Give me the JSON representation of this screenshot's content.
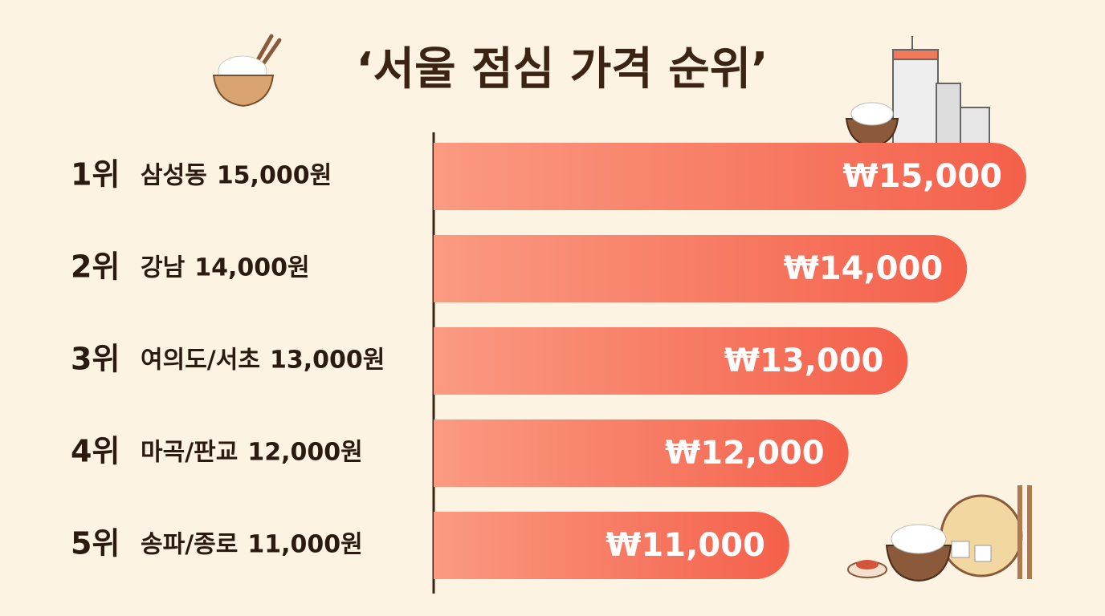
{
  "chart_data": {
    "type": "bar",
    "orientation": "horizontal",
    "title": "‘서울 점심 가격 순위’",
    "ranks": [
      "1위",
      "2위",
      "3위",
      "4위",
      "5위"
    ],
    "categories": [
      "삼성동",
      "강남",
      "여의도/서초",
      "마곡/판교",
      "송파/종로"
    ],
    "price_labels": [
      "15,000원",
      "14,000원",
      "13,000원",
      "12,000원",
      "11,000원"
    ],
    "values": [
      15000,
      14000,
      13000,
      12000,
      11000
    ],
    "value_labels": [
      "₩15,000",
      "₩14,000",
      "₩13,000",
      "₩12,000",
      "₩11,000"
    ],
    "xlim": [
      5000,
      15000
    ],
    "color": "#f4654c"
  }
}
